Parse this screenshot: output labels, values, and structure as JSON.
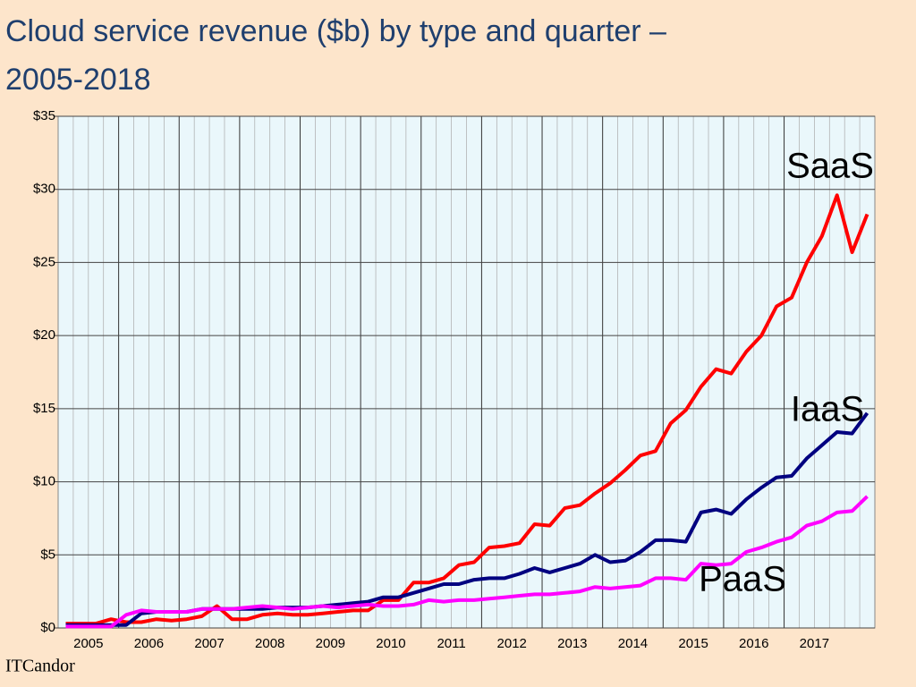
{
  "chart_data": {
    "type": "line",
    "title": "Cloud service revenue ($b) by type and quarter – 2005-2018",
    "source_logo": "ITCandor",
    "categories": [
      "2005",
      null,
      null,
      null,
      "2006",
      null,
      null,
      null,
      "2007",
      null,
      null,
      null,
      "2008",
      null,
      null,
      null,
      "2009",
      null,
      null,
      null,
      "2010",
      null,
      null,
      null,
      "2011",
      null,
      null,
      null,
      "2012",
      null,
      null,
      null,
      "2013",
      null,
      null,
      null,
      "2014",
      null,
      null,
      null,
      "2015",
      null,
      null,
      null,
      "2016",
      null,
      null,
      null,
      "2017",
      null,
      null,
      null,
      null,
      null
    ],
    "ylim": [
      0,
      35
    ],
    "yticks": [
      {
        "value": 0,
        "label": "$0"
      },
      {
        "value": 5,
        "label": "$5"
      },
      {
        "value": 10,
        "label": "$10"
      },
      {
        "value": 15,
        "label": "$15"
      },
      {
        "value": 20,
        "label": "$20"
      },
      {
        "value": 25,
        "label": "$25"
      },
      {
        "value": 30,
        "label": "$30"
      },
      {
        "value": 35,
        "label": "$35"
      }
    ],
    "grid": true,
    "legend": false,
    "series": [
      {
        "name": "SaaS",
        "color": "#ff0000",
        "values": [
          0.3,
          0.3,
          0.3,
          0.6,
          0.4,
          0.4,
          0.6,
          0.5,
          0.6,
          0.8,
          1.5,
          0.6,
          0.6,
          0.9,
          1.0,
          0.9,
          0.9,
          1.0,
          1.1,
          1.2,
          1.2,
          1.9,
          1.9,
          3.1,
          3.1,
          3.4,
          4.3,
          4.5,
          5.5,
          5.6,
          5.8,
          7.1,
          7.0,
          8.2,
          8.4,
          9.2,
          9.9,
          10.8,
          11.8,
          12.1,
          14.0,
          14.9,
          16.5,
          17.7,
          17.4,
          18.9,
          20.0,
          22.0,
          22.6,
          25.0,
          26.8,
          29.6,
          25.7,
          28.3
        ]
      },
      {
        "name": "IaaS",
        "color": "#000080",
        "values": [
          0.2,
          0.2,
          0.2,
          0.2,
          0.2,
          1.0,
          1.1,
          1.1,
          1.1,
          1.3,
          1.3,
          1.3,
          1.3,
          1.3,
          1.4,
          1.4,
          1.4,
          1.5,
          1.6,
          1.7,
          1.8,
          2.1,
          2.1,
          2.4,
          2.7,
          3.0,
          3.0,
          3.3,
          3.4,
          3.4,
          3.7,
          4.1,
          3.8,
          4.1,
          4.4,
          5.0,
          4.5,
          4.6,
          5.2,
          6.0,
          6.0,
          5.9,
          7.9,
          8.1,
          7.8,
          8.8,
          9.6,
          10.3,
          10.4,
          11.6,
          12.5,
          13.4,
          13.3,
          14.7
        ]
      },
      {
        "name": "PaaS",
        "color": "#ff00ff",
        "values": [
          0.1,
          0.1,
          0.1,
          0.1,
          0.9,
          1.2,
          1.1,
          1.1,
          1.1,
          1.3,
          1.3,
          1.3,
          1.4,
          1.5,
          1.4,
          1.3,
          1.4,
          1.5,
          1.4,
          1.5,
          1.6,
          1.5,
          1.5,
          1.6,
          1.9,
          1.8,
          1.9,
          1.9,
          2.0,
          2.1,
          2.2,
          2.3,
          2.3,
          2.4,
          2.5,
          2.8,
          2.7,
          2.8,
          2.9,
          3.4,
          3.4,
          3.3,
          4.4,
          4.3,
          4.4,
          5.2,
          5.5,
          5.9,
          6.2,
          7.0,
          7.3,
          7.9,
          8.0,
          9.0
        ]
      }
    ]
  }
}
